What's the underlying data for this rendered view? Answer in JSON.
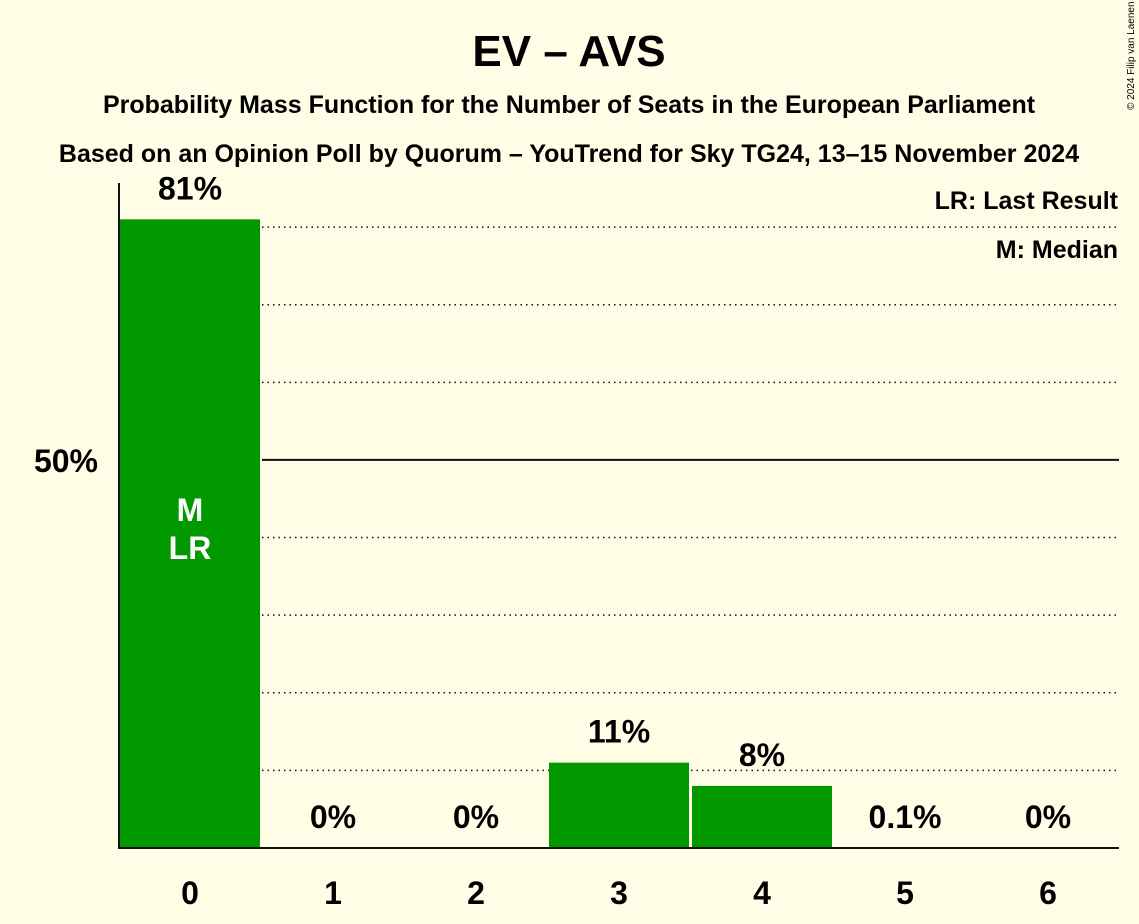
{
  "chart_data": {
    "type": "bar",
    "title": "EV – AVS",
    "subtitle": "Probability Mass Function for the Number of Seats in the European Parliament",
    "subtitle2": "Based on an Opinion Poll by Quorum – YouTrend for Sky TG24, 13–15 November 2024",
    "categories": [
      "0",
      "1",
      "2",
      "3",
      "4",
      "5",
      "6"
    ],
    "values": [
      81,
      0,
      0,
      11,
      8,
      0.1,
      0
    ],
    "value_labels": [
      "81%",
      "0%",
      "0%",
      "11%",
      "8%",
      "0.1%",
      "0%"
    ],
    "bar_annotations": [
      {
        "index": 0,
        "lines": [
          "M",
          "LR"
        ]
      }
    ],
    "ylim": [
      0,
      88
    ],
    "yticks": [
      {
        "value": 50,
        "label": "50%"
      }
    ],
    "dotted_gridlines": [
      10,
      20,
      30,
      40,
      60,
      70,
      80
    ],
    "legend": [
      "LR: Last Result",
      "M: Median"
    ],
    "legend_position": "top-right",
    "bar_color": "#009900",
    "copyright": "© 2024 Filip van Laenen"
  }
}
